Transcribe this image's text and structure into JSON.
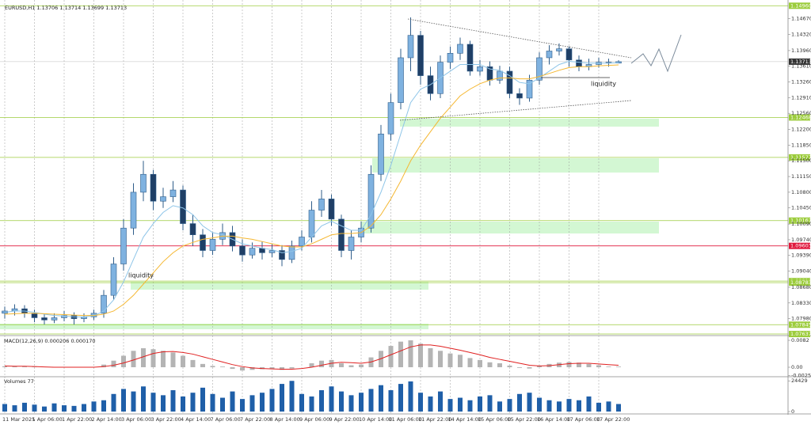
{
  "chart_data": [
    {
      "type": "candlestick",
      "title": "EURUSD,H1  1.13706 1.13714 1.13699 1.13713",
      "categories": [
        "11 Mar 2025",
        null,
        null,
        "1 Apr 06:00",
        null,
        null,
        "1 Apr 22:00",
        null,
        null,
        "2 Apr 14:00",
        null,
        null,
        "3 Apr 06:00",
        null,
        null,
        "3 Apr 22:00",
        null,
        null,
        "4 Apr 14:00",
        null,
        null,
        "7 Apr 06:00",
        null,
        null,
        "7 Apr 22:00",
        null,
        null,
        "8 Apr 14:00",
        null,
        null,
        "9 Apr 06:00",
        null,
        null,
        "9 Apr 22:00",
        null,
        null,
        "10 Apr 14:00",
        null,
        null,
        "11 Apr 06:00",
        null,
        null,
        "11 Apr 22:00",
        null,
        null,
        "14 Apr 14:00",
        null,
        null,
        "15 Apr 06:00",
        null,
        null,
        "15 Apr 22:00",
        null,
        null,
        "16 Apr 14:00",
        null,
        null,
        "17 Apr 06:00",
        null,
        null,
        "17 Apr 22:00",
        null,
        null
      ],
      "open": [
        1.081,
        1.0815,
        1.082,
        1.081,
        1.08,
        1.0795,
        1.08,
        1.0805,
        1.0798,
        1.0802,
        1.081,
        1.085,
        1.092,
        1.1,
        1.108,
        1.112,
        1.106,
        1.107,
        1.1085,
        1.101,
        1.0985,
        1.095,
        1.0975,
        1.099,
        1.096,
        1.094,
        1.0955,
        1.0945,
        1.095,
        1.093,
        1.096,
        1.098,
        1.104,
        1.1065,
        1.102,
        1.095,
        1.098,
        1.1,
        1.112,
        1.121,
        1.128,
        1.138,
        1.143,
        1.134,
        1.13,
        1.137,
        1.139,
        1.141,
        1.135,
        1.136,
        1.133,
        1.135,
        1.13,
        1.129,
        1.133,
        1.138,
        1.1395,
        1.14,
        1.1375,
        1.136,
        1.1365,
        1.137,
        1.1368
      ],
      "high": [
        1.0825,
        1.083,
        1.0828,
        1.0818,
        1.0808,
        1.081,
        1.0815,
        1.0812,
        1.081,
        1.0818,
        1.0862,
        1.0935,
        1.102,
        1.11,
        1.115,
        1.113,
        1.109,
        1.1105,
        1.1095,
        1.103,
        1.0998,
        1.099,
        1.101,
        1.1005,
        1.0975,
        1.0968,
        1.097,
        1.0965,
        1.0962,
        1.0972,
        1.0995,
        1.106,
        1.1085,
        1.1075,
        1.103,
        1.0995,
        1.1015,
        1.114,
        1.123,
        1.13,
        1.14,
        1.147,
        1.144,
        1.136,
        1.1385,
        1.1405,
        1.1425,
        1.1418,
        1.1375,
        1.1372,
        1.1362,
        1.136,
        1.1312,
        1.1342,
        1.1392,
        1.1408,
        1.1412,
        1.1405,
        1.1385,
        1.1378,
        1.138,
        1.1378,
        1.13745
      ],
      "low": [
        1.0798,
        1.0805,
        1.08,
        1.079,
        1.0785,
        1.0788,
        1.0792,
        1.0785,
        1.079,
        1.0795,
        1.08,
        1.084,
        1.0905,
        1.0985,
        1.106,
        1.104,
        1.1045,
        1.1058,
        1.0995,
        1.096,
        1.0935,
        1.094,
        1.0962,
        1.0948,
        1.0925,
        1.0932,
        1.093,
        1.0935,
        1.0915,
        1.0922,
        1.095,
        1.0968,
        1.1025,
        1.1005,
        1.0935,
        1.093,
        1.0968,
        1.099,
        1.1105,
        1.1195,
        1.1265,
        1.135,
        1.132,
        1.1285,
        1.129,
        1.1355,
        1.1375,
        1.134,
        1.134,
        1.1318,
        1.1322,
        1.129,
        1.1275,
        1.1282,
        1.132,
        1.1365,
        1.1385,
        1.136,
        1.135,
        1.1352,
        1.1358,
        1.136,
        1.1369
      ],
      "close": [
        1.0815,
        1.082,
        1.081,
        1.08,
        1.0795,
        1.08,
        1.0805,
        1.0798,
        1.0802,
        1.081,
        1.085,
        1.092,
        1.1,
        1.108,
        1.112,
        1.106,
        1.107,
        1.1085,
        1.101,
        1.0985,
        1.095,
        1.0975,
        1.099,
        1.096,
        1.094,
        1.0955,
        1.0945,
        1.095,
        1.093,
        1.096,
        1.098,
        1.104,
        1.1065,
        1.102,
        1.095,
        1.098,
        1.1,
        1.112,
        1.121,
        1.128,
        1.138,
        1.143,
        1.134,
        1.13,
        1.137,
        1.139,
        1.141,
        1.135,
        1.136,
        1.133,
        1.135,
        1.13,
        1.129,
        1.133,
        1.138,
        1.1395,
        1.14,
        1.1375,
        1.136,
        1.1365,
        1.137,
        1.1368,
        1.13713
      ],
      "series": [
        {
          "color": "#8ec5e8",
          "values": [
            1.0812,
            1.0815,
            1.0815,
            1.0812,
            1.0808,
            1.0805,
            1.0804,
            1.0802,
            1.0802,
            1.0804,
            1.0815,
            1.084,
            1.088,
            1.093,
            1.098,
            1.101,
            1.1035,
            1.105,
            1.1045,
            1.103,
            1.1005,
            1.099,
            1.0985,
            1.0975,
            1.0965,
            1.096,
            1.0955,
            1.0952,
            1.0945,
            1.0948,
            1.0955,
            1.098,
            1.1005,
            1.1015,
            1.1005,
            1.0995,
            1.0995,
            1.103,
            1.108,
            1.114,
            1.121,
            1.128,
            1.131,
            1.132,
            1.1335,
            1.135,
            1.1365,
            1.1365,
            1.1365,
            1.1355,
            1.1352,
            1.134,
            1.1325,
            1.1322,
            1.1335,
            1.135,
            1.1365,
            1.1372,
            1.137,
            1.1368,
            1.1368,
            1.1368,
            1.1369
          ]
        },
        {
          "color": "#f5b731",
          "values": [
            1.0808,
            1.0809,
            1.081,
            1.081,
            1.0809,
            1.0808,
            1.0807,
            1.0806,
            1.0805,
            1.0805,
            1.0808,
            1.0815,
            1.083,
            1.085,
            1.0875,
            1.09,
            1.0925,
            1.0945,
            1.096,
            1.0968,
            1.0975,
            1.0978,
            1.0982,
            1.0982,
            1.0978,
            1.0975,
            1.097,
            1.0965,
            1.096,
            1.0958,
            1.0958,
            1.0965,
            1.0975,
            1.0985,
            1.0988,
            1.0988,
            1.099,
            1.1005,
            1.103,
            1.1065,
            1.1105,
            1.115,
            1.1185,
            1.1215,
            1.1245,
            1.127,
            1.1295,
            1.131,
            1.1322,
            1.133,
            1.1335,
            1.1335,
            1.1333,
            1.1333,
            1.1338,
            1.1345,
            1.1352,
            1.1358,
            1.136,
            1.136,
            1.1362,
            1.1363,
            1.1364
          ]
        }
      ],
      "up_color": "#7fb2e0",
      "down_color": "#1f3f66",
      "wick_color": "#2f5d8a",
      "ylim": [
        1.0762,
        1.15
      ],
      "yticks": [
        {
          "value": 1.1467,
          "label": "1.14670"
        },
        {
          "value": 1.1432,
          "label": "1.14320"
        },
        {
          "value": 1.1396,
          "label": "1.13960"
        },
        {
          "value": 1.1361,
          "label": "1.13610"
        },
        {
          "value": 1.1326,
          "label": "1.13260"
        },
        {
          "value": 1.1291,
          "label": "1.12910"
        },
        {
          "value": 1.1256,
          "label": "1.12560"
        },
        {
          "value": 1.122,
          "label": "1.12200"
        },
        {
          "value": 1.1185,
          "label": "1.11850"
        },
        {
          "value": 1.115,
          "label": "1.11500"
        },
        {
          "value": 1.1115,
          "label": "1.11150"
        },
        {
          "value": 1.108,
          "label": "1.10800"
        },
        {
          "value": 1.1045,
          "label": "1.10450"
        },
        {
          "value": 1.1009,
          "label": "1.10090"
        },
        {
          "value": 1.0974,
          "label": "1.09740"
        },
        {
          "value": 1.0939,
          "label": "1.09390"
        },
        {
          "value": 1.0904,
          "label": "1.09040"
        },
        {
          "value": 1.0868,
          "label": "1.08680"
        },
        {
          "value": 1.0833,
          "label": "1.08330"
        },
        {
          "value": 1.0798,
          "label": "1.07980"
        }
      ],
      "levels": [
        {
          "value": 1.1496,
          "label": "1.14960",
          "color": "#9ccc3c"
        },
        {
          "value": 1.12468,
          "label": "1.12468",
          "color": "#9ccc3c"
        },
        {
          "value": 1.11577,
          "label": "1.11577",
          "color": "#9ccc3c"
        },
        {
          "value": 1.10167,
          "label": "1.10167",
          "color": "#9ccc3c"
        },
        {
          "value": 1.09603,
          "label": "1.09603",
          "color": "#e0183c"
        },
        {
          "value": 1.08818,
          "label": "1.08818",
          "color": "#9ccc3c"
        },
        {
          "value": 1.08783,
          "label": "1.08783",
          "color": "#9ccc3c"
        },
        {
          "value": 1.07845,
          "label": "1.07845",
          "color": "#9ccc3c"
        },
        {
          "value": 1.07637,
          "label": "1.07637",
          "color": "#9ccc3c"
        }
      ],
      "current": {
        "value": 1.13713,
        "label": "1.13713"
      },
      "annotations": [
        "liquidity",
        "liquidity"
      ]
    },
    {
      "type": "macd",
      "title": "MACD(12,26,9) 0.000206 0.000170",
      "values": [
        0.0003,
        0.0003,
        0.0002,
        0.0001,
        0.0,
        -0.0001,
        -0.0001,
        0.0,
        0.0,
        0.0001,
        0.0008,
        0.002,
        0.0035,
        0.005,
        0.0058,
        0.0055,
        0.005,
        0.0045,
        0.0035,
        0.0022,
        0.001,
        0.0004,
        0.0002,
        -0.0005,
        -0.001,
        -0.0008,
        -0.0006,
        -0.0005,
        -0.0008,
        -0.0004,
        0.0,
        0.0012,
        0.002,
        0.0022,
        0.0012,
        0.0006,
        0.0008,
        0.003,
        0.005,
        0.0065,
        0.0078,
        0.0082,
        0.0072,
        0.0058,
        0.005,
        0.0042,
        0.0038,
        0.0028,
        0.0022,
        0.0015,
        0.0012,
        0.0005,
        -0.0002,
        -0.0004,
        0.0004,
        0.001,
        0.0014,
        0.0016,
        0.0014,
        0.001,
        0.0006,
        0.0002,
        0.0002
      ],
      "color": "#b4b4b4",
      "signal": {
        "color": "#e02020",
        "values": [
          0.0004,
          0.0003,
          0.0003,
          0.0002,
          0.0001,
          0.0,
          0.0,
          0.0,
          0.0,
          0.0,
          0.0002,
          0.0006,
          0.0013,
          0.0022,
          0.0032,
          0.0042,
          0.0047,
          0.0048,
          0.0045,
          0.004,
          0.0032,
          0.0024,
          0.0016,
          0.0008,
          0.0002,
          -0.0002,
          -0.0004,
          -0.0005,
          -0.0006,
          -0.0006,
          -0.0004,
          0.0,
          0.0006,
          0.0012,
          0.0015,
          0.0014,
          0.0012,
          0.0016,
          0.0026,
          0.0038,
          0.005,
          0.0062,
          0.0068,
          0.0068,
          0.0064,
          0.0058,
          0.0052,
          0.0045,
          0.0038,
          0.003,
          0.0024,
          0.0018,
          0.0012,
          0.0006,
          0.0004,
          0.0005,
          0.0008,
          0.0011,
          0.0012,
          0.0012,
          0.001,
          0.0008,
          0.0006
        ]
      },
      "ylim": [
        -0.00265,
        0.00917
      ],
      "yticks": [
        0.0082,
        {
          "value": 0,
          "label": "0.00"
        },
        -0.002526
      ]
    },
    {
      "type": "volume",
      "title": "Volumes 77",
      "values": [
        6000,
        5000,
        7000,
        5500,
        4000,
        6500,
        5000,
        4500,
        6000,
        8000,
        9000,
        14000,
        18000,
        16000,
        20000,
        15000,
        13000,
        17000,
        12000,
        15000,
        19000,
        14000,
        11000,
        16000,
        10000,
        13000,
        15000,
        18000,
        22000,
        24429,
        14000,
        12000,
        17000,
        20000,
        16000,
        13000,
        15000,
        18000,
        21000,
        17000,
        22000,
        24000,
        15000,
        12000,
        16000,
        10000,
        11000,
        9000,
        12000,
        13000,
        8000,
        10000,
        14000,
        15000,
        11000,
        9000,
        8000,
        10000,
        9000,
        12000,
        7000,
        8000,
        6000
      ],
      "color": "#1f5fa8",
      "ylim": [
        0,
        27100
      ],
      "yticks": [
        24429,
        0
      ]
    }
  ]
}
